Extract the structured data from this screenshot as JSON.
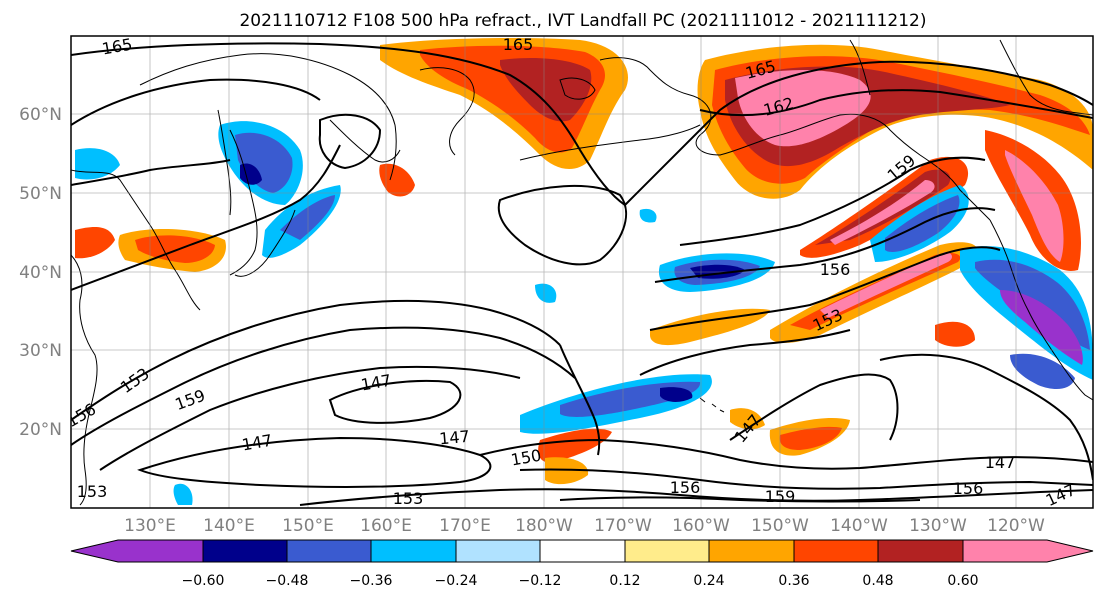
{
  "title": "2021110712 F108 500 hPa refract., IVT Landfall PC (2021111012 - 2021111212)",
  "lat_ticks": [
    "60°N",
    "50°N",
    "40°N",
    "30°N",
    "20°N"
  ],
  "lon_ticks": [
    "130°E",
    "140°E",
    "150°E",
    "160°E",
    "170°E",
    "180°W",
    "170°W",
    "160°W",
    "150°W",
    "140°W",
    "130°W",
    "120°W"
  ],
  "contour_labels": [
    "165",
    "165",
    "165",
    "162",
    "159",
    "156",
    "153",
    "153",
    "159",
    "147",
    "147",
    "147",
    "150",
    "147",
    "156",
    "159",
    "153",
    "147",
    "156",
    "147",
    "156",
    "153"
  ],
  "colorbar": {
    "ticks": [
      "−0.60",
      "−0.48",
      "−0.36",
      "−0.24",
      "−0.12",
      "0.12",
      "0.24",
      "0.36",
      "0.48",
      "0.60"
    ],
    "colors": [
      "#9932cc",
      "#00008b",
      "#3a5bd0",
      "#00bfff",
      "#b0e2ff",
      "#ffffff",
      "#ffec8b",
      "#ffa500",
      "#ff4500",
      "#b22222",
      "#ff82ab"
    ]
  },
  "colors": {
    "neg_strong": "#9932cc",
    "neg_4": "#00008b",
    "neg_3": "#3a5bd0",
    "neg_2": "#00bfff",
    "neg_1": "#b0e2ff",
    "pos_1": "#ffec8b",
    "pos_2": "#ffa500",
    "pos_3": "#ff4500",
    "pos_4": "#b22222",
    "pos_strong": "#ff82ab"
  }
}
